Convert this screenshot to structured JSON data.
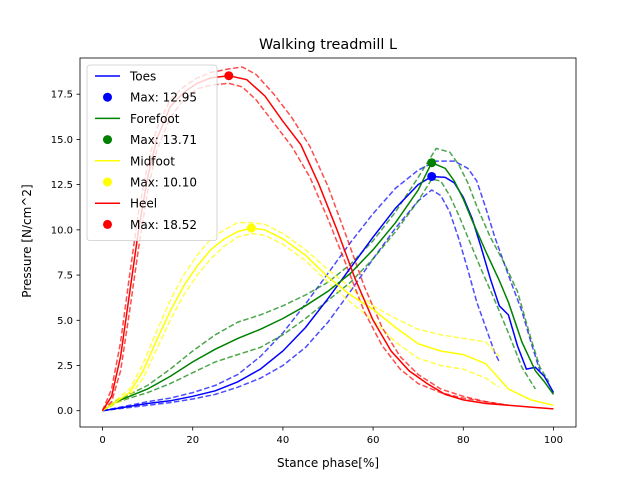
{
  "chart_data": {
    "type": "line",
    "title": "Walking treadmill L",
    "xlabel": "Stance phase[%]",
    "ylabel": "Pressure [N/cm^2]",
    "xlim": [
      -5,
      105
    ],
    "ylim": [
      -0.9,
      19.5
    ],
    "xticks": [
      0,
      20,
      40,
      60,
      80,
      100
    ],
    "yticks": [
      0.0,
      2.5,
      5.0,
      7.5,
      10.0,
      12.5,
      15.0,
      17.5
    ],
    "grid": false,
    "legend_position": "top-left",
    "series": [
      {
        "name": "Toes",
        "color": "#0000ff",
        "max_label": "Max: 12.95",
        "max_point": [
          73,
          12.95
        ],
        "mean": [
          [
            0,
            0
          ],
          [
            5,
            0.2
          ],
          [
            10,
            0.4
          ],
          [
            15,
            0.55
          ],
          [
            20,
            0.8
          ],
          [
            25,
            1.1
          ],
          [
            30,
            1.6
          ],
          [
            35,
            2.3
          ],
          [
            40,
            3.3
          ],
          [
            45,
            4.6
          ],
          [
            50,
            6.2
          ],
          [
            55,
            7.9
          ],
          [
            60,
            9.6
          ],
          [
            65,
            11.2
          ],
          [
            70,
            12.5
          ],
          [
            73,
            12.95
          ],
          [
            76,
            12.9
          ],
          [
            78,
            12.6
          ],
          [
            80,
            11.8
          ],
          [
            82,
            10.6
          ],
          [
            84,
            9.0
          ],
          [
            86,
            7.3
          ],
          [
            88,
            5.8
          ],
          [
            90,
            5.3
          ],
          [
            92,
            3.6
          ],
          [
            94,
            2.3
          ],
          [
            96,
            2.4
          ],
          [
            98,
            1.9
          ],
          [
            100,
            1.0
          ]
        ],
        "upper": [
          [
            0,
            0
          ],
          [
            5,
            0.25
          ],
          [
            10,
            0.5
          ],
          [
            15,
            0.7
          ],
          [
            20,
            1.0
          ],
          [
            25,
            1.4
          ],
          [
            30,
            2.0
          ],
          [
            35,
            3.0
          ],
          [
            40,
            4.3
          ],
          [
            45,
            5.9
          ],
          [
            50,
            7.6
          ],
          [
            55,
            9.3
          ],
          [
            60,
            10.9
          ],
          [
            65,
            12.3
          ],
          [
            70,
            13.3
          ],
          [
            74,
            13.8
          ],
          [
            78,
            13.8
          ],
          [
            81,
            13.4
          ],
          [
            83,
            12.7
          ],
          [
            85,
            11.2
          ],
          [
            87,
            9.6
          ],
          [
            90,
            7.5
          ],
          [
            93,
            5.5
          ],
          [
            95,
            3.8
          ],
          [
            97,
            2.2
          ]
        ],
        "lower": [
          [
            0,
            0
          ],
          [
            5,
            0.15
          ],
          [
            10,
            0.3
          ],
          [
            15,
            0.45
          ],
          [
            20,
            0.65
          ],
          [
            25,
            0.9
          ],
          [
            30,
            1.3
          ],
          [
            35,
            1.8
          ],
          [
            40,
            2.5
          ],
          [
            45,
            3.5
          ],
          [
            50,
            4.9
          ],
          [
            55,
            6.6
          ],
          [
            60,
            8.4
          ],
          [
            65,
            10.1
          ],
          [
            70,
            11.6
          ],
          [
            73,
            12.2
          ],
          [
            75,
            11.9
          ],
          [
            77,
            11.0
          ],
          [
            79,
            9.5
          ],
          [
            81,
            7.8
          ],
          [
            83,
            6.0
          ],
          [
            85,
            4.6
          ],
          [
            87,
            3.2
          ],
          [
            88,
            2.7
          ]
        ]
      },
      {
        "name": "Forefoot",
        "color": "#008000",
        "max_label": "Max: 13.71",
        "max_point": [
          73,
          13.71
        ],
        "mean": [
          [
            0,
            0
          ],
          [
            3,
            0.5
          ],
          [
            6,
            0.8
          ],
          [
            10,
            1.2
          ],
          [
            15,
            1.9
          ],
          [
            20,
            2.7
          ],
          [
            25,
            3.4
          ],
          [
            30,
            4.0
          ],
          [
            35,
            4.5
          ],
          [
            40,
            5.1
          ],
          [
            45,
            5.8
          ],
          [
            50,
            6.6
          ],
          [
            55,
            7.6
          ],
          [
            60,
            8.9
          ],
          [
            65,
            10.4
          ],
          [
            70,
            12.2
          ],
          [
            73,
            13.71
          ],
          [
            76,
            13.4
          ],
          [
            78,
            12.7
          ],
          [
            80,
            11.7
          ],
          [
            82,
            10.5
          ],
          [
            85,
            8.8
          ],
          [
            88,
            7.2
          ],
          [
            90,
            6.0
          ],
          [
            93,
            3.8
          ],
          [
            96,
            2.2
          ],
          [
            98,
            1.6
          ],
          [
            100,
            0.9
          ]
        ],
        "upper": [
          [
            0,
            0
          ],
          [
            3,
            0.55
          ],
          [
            6,
            0.9
          ],
          [
            10,
            1.4
          ],
          [
            15,
            2.3
          ],
          [
            20,
            3.3
          ],
          [
            25,
            4.2
          ],
          [
            30,
            4.9
          ],
          [
            35,
            5.3
          ],
          [
            40,
            5.8
          ],
          [
            45,
            6.4
          ],
          [
            50,
            7.1
          ],
          [
            55,
            8.1
          ],
          [
            60,
            9.4
          ],
          [
            65,
            11.0
          ],
          [
            70,
            12.9
          ],
          [
            74,
            14.5
          ],
          [
            77,
            14.3
          ],
          [
            79,
            13.6
          ],
          [
            81,
            12.6
          ],
          [
            83,
            11.3
          ],
          [
            86,
            9.6
          ],
          [
            89,
            8.2
          ],
          [
            92,
            6.6
          ],
          [
            95,
            4.0
          ],
          [
            97,
            2.4
          ],
          [
            99,
            1.6
          ]
        ],
        "lower": [
          [
            0,
            0
          ],
          [
            3,
            0.45
          ],
          [
            6,
            0.7
          ],
          [
            10,
            1.0
          ],
          [
            15,
            1.5
          ],
          [
            20,
            2.1
          ],
          [
            25,
            2.7
          ],
          [
            30,
            3.1
          ],
          [
            35,
            3.5
          ],
          [
            40,
            4.2
          ],
          [
            45,
            5.1
          ],
          [
            50,
            6.1
          ],
          [
            55,
            7.1
          ],
          [
            60,
            8.4
          ],
          [
            65,
            9.9
          ],
          [
            70,
            11.6
          ],
          [
            73,
            12.8
          ],
          [
            75,
            12.7
          ],
          [
            77,
            11.9
          ],
          [
            79,
            10.8
          ],
          [
            81,
            9.6
          ],
          [
            84,
            7.8
          ],
          [
            87,
            6.1
          ],
          [
            90,
            4.3
          ],
          [
            93,
            2.4
          ],
          [
            96,
            1.2
          ]
        ]
      },
      {
        "name": "Midfoot",
        "color": "#ffff00",
        "max_label": "Max: 10.10",
        "max_point": [
          33,
          10.1
        ],
        "mean": [
          [
            0,
            0
          ],
          [
            3,
            0.5
          ],
          [
            6,
            1.0
          ],
          [
            9,
            2.2
          ],
          [
            12,
            3.9
          ],
          [
            15,
            5.5
          ],
          [
            18,
            6.9
          ],
          [
            21,
            8.0
          ],
          [
            24,
            8.9
          ],
          [
            27,
            9.5
          ],
          [
            30,
            9.9
          ],
          [
            33,
            10.1
          ],
          [
            36,
            10.0
          ],
          [
            40,
            9.5
          ],
          [
            45,
            8.6
          ],
          [
            50,
            7.4
          ],
          [
            55,
            6.4
          ],
          [
            60,
            5.6
          ],
          [
            65,
            4.6
          ],
          [
            70,
            3.7
          ],
          [
            75,
            3.3
          ],
          [
            80,
            3.1
          ],
          [
            85,
            2.6
          ],
          [
            90,
            1.2
          ],
          [
            95,
            0.6
          ],
          [
            100,
            0.3
          ]
        ],
        "upper": [
          [
            0,
            0
          ],
          [
            3,
            0.6
          ],
          [
            6,
            1.2
          ],
          [
            9,
            2.6
          ],
          [
            12,
            4.4
          ],
          [
            15,
            6.1
          ],
          [
            18,
            7.5
          ],
          [
            21,
            8.6
          ],
          [
            24,
            9.5
          ],
          [
            27,
            10.0
          ],
          [
            30,
            10.4
          ],
          [
            33,
            10.4
          ],
          [
            36,
            10.3
          ],
          [
            40,
            9.8
          ],
          [
            45,
            8.9
          ],
          [
            50,
            7.8
          ],
          [
            55,
            6.8
          ],
          [
            60,
            5.8
          ],
          [
            65,
            5.1
          ],
          [
            70,
            4.5
          ],
          [
            75,
            4.2
          ],
          [
            80,
            4.0
          ],
          [
            85,
            3.8
          ],
          [
            88,
            3.0
          ]
        ],
        "lower": [
          [
            0,
            0
          ],
          [
            3,
            0.4
          ],
          [
            6,
            0.8
          ],
          [
            9,
            1.8
          ],
          [
            12,
            3.4
          ],
          [
            15,
            5.0
          ],
          [
            18,
            6.4
          ],
          [
            21,
            7.5
          ],
          [
            24,
            8.4
          ],
          [
            27,
            9.1
          ],
          [
            30,
            9.6
          ],
          [
            33,
            9.8
          ],
          [
            36,
            9.7
          ],
          [
            40,
            9.2
          ],
          [
            45,
            8.3
          ],
          [
            50,
            7.1
          ],
          [
            55,
            6.0
          ],
          [
            60,
            5.0
          ],
          [
            65,
            3.8
          ],
          [
            70,
            2.9
          ],
          [
            75,
            2.5
          ],
          [
            80,
            2.3
          ],
          [
            85,
            1.8
          ],
          [
            88,
            1.3
          ]
        ]
      },
      {
        "name": "Heel",
        "color": "#ff0000",
        "max_label": "Max: 18.52",
        "max_point": [
          28,
          18.52
        ],
        "mean": [
          [
            0,
            0
          ],
          [
            2,
            0.8
          ],
          [
            4,
            3.0
          ],
          [
            6,
            6.5
          ],
          [
            8,
            10.0
          ],
          [
            10,
            12.9
          ],
          [
            12,
            15.0
          ],
          [
            15,
            16.8
          ],
          [
            18,
            17.6
          ],
          [
            21,
            18.1
          ],
          [
            24,
            18.4
          ],
          [
            28,
            18.52
          ],
          [
            32,
            18.3
          ],
          [
            36,
            17.4
          ],
          [
            40,
            16.0
          ],
          [
            44,
            14.7
          ],
          [
            48,
            12.5
          ],
          [
            52,
            10.0
          ],
          [
            56,
            7.3
          ],
          [
            60,
            5.0
          ],
          [
            64,
            3.3
          ],
          [
            68,
            2.2
          ],
          [
            72,
            1.5
          ],
          [
            76,
            0.9
          ],
          [
            80,
            0.6
          ],
          [
            85,
            0.4
          ],
          [
            90,
            0.3
          ],
          [
            95,
            0.2
          ],
          [
            100,
            0.1
          ]
        ],
        "upper": [
          [
            0,
            0
          ],
          [
            2,
            1.2
          ],
          [
            4,
            3.8
          ],
          [
            6,
            7.5
          ],
          [
            8,
            11.0
          ],
          [
            10,
            13.6
          ],
          [
            12,
            15.6
          ],
          [
            15,
            17.2
          ],
          [
            18,
            17.9
          ],
          [
            21,
            18.4
          ],
          [
            24,
            18.7
          ],
          [
            28,
            18.9
          ],
          [
            31,
            19.0
          ],
          [
            34,
            18.6
          ],
          [
            38,
            17.5
          ],
          [
            42,
            16.2
          ],
          [
            46,
            14.6
          ],
          [
            50,
            12.4
          ],
          [
            54,
            9.7
          ],
          [
            58,
            6.9
          ],
          [
            62,
            4.6
          ],
          [
            66,
            3.0
          ],
          [
            70,
            2.0
          ],
          [
            75,
            1.2
          ],
          [
            80,
            0.8
          ],
          [
            85,
            0.5
          ],
          [
            90,
            0.3
          ]
        ],
        "lower": [
          [
            0,
            0
          ],
          [
            2,
            0.5
          ],
          [
            4,
            2.2
          ],
          [
            6,
            5.5
          ],
          [
            8,
            9.0
          ],
          [
            10,
            12.1
          ],
          [
            12,
            14.4
          ],
          [
            15,
            16.2
          ],
          [
            18,
            17.2
          ],
          [
            21,
            17.8
          ],
          [
            24,
            18.0
          ],
          [
            28,
            18.1
          ],
          [
            31,
            17.9
          ],
          [
            34,
            17.2
          ],
          [
            38,
            15.9
          ],
          [
            42,
            14.6
          ],
          [
            46,
            12.9
          ],
          [
            50,
            10.6
          ],
          [
            54,
            8.1
          ],
          [
            58,
            5.5
          ],
          [
            62,
            3.6
          ],
          [
            66,
            2.3
          ],
          [
            70,
            1.5
          ],
          [
            75,
            1.0
          ],
          [
            80,
            0.7
          ],
          [
            85,
            0.5
          ],
          [
            90,
            0.3
          ]
        ]
      }
    ]
  }
}
